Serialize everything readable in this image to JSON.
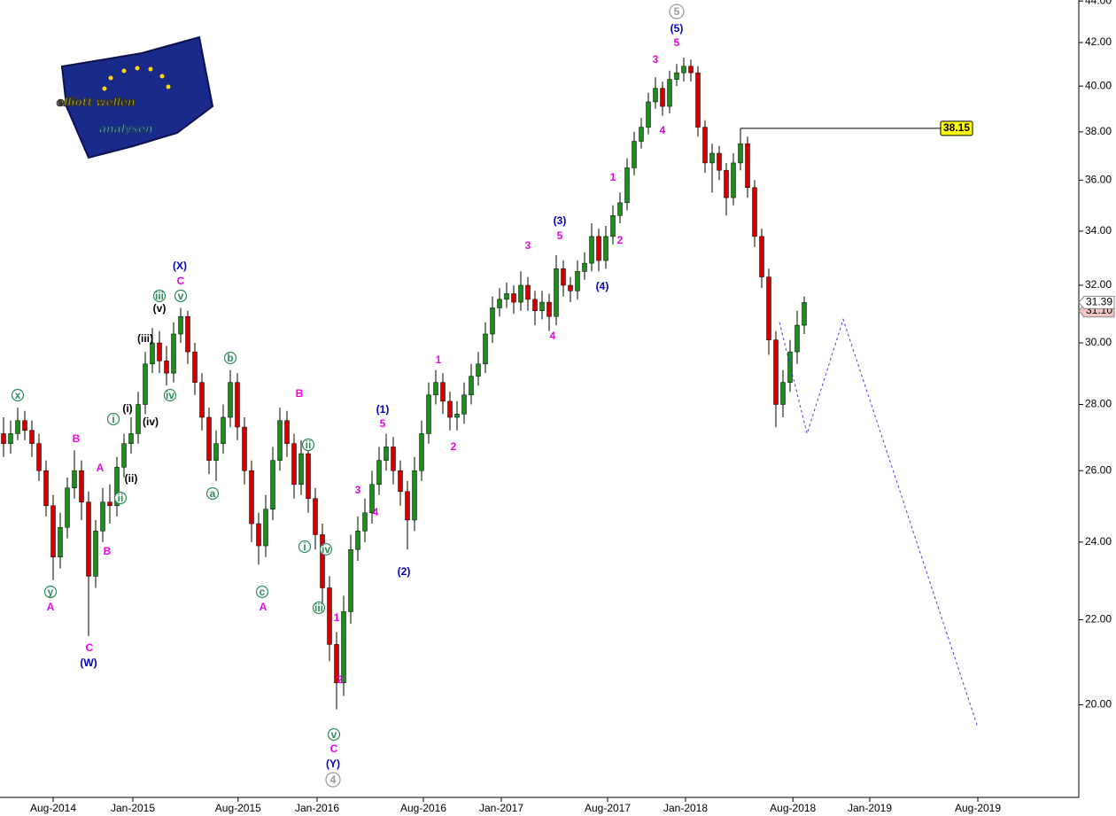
{
  "chart_data": {
    "type": "candlestick",
    "logo": {
      "line1": "elliott wellen",
      "line2": "analysen"
    },
    "open": [
      27.1,
      26.8,
      27.1,
      27.5,
      27.2,
      26.8,
      26.0,
      25.0,
      23.6,
      24.4,
      25.5,
      26.0,
      25.1,
      23.1,
      24.3,
      25.1,
      25.0,
      26.1,
      26.8,
      27.1,
      28.0,
      29.3,
      30.0,
      29.4,
      29.0,
      30.3,
      30.9,
      29.7,
      28.7,
      27.6,
      26.3,
      26.8,
      27.6,
      28.7,
      27.3,
      26.0,
      24.5,
      23.9,
      24.9,
      26.3,
      27.5,
      26.8,
      25.6,
      26.5,
      25.2,
      24.2,
      22.8,
      21.4,
      20.5,
      22.2,
      23.8,
      24.3,
      24.8,
      25.6,
      26.3,
      26.7,
      26.0,
      25.4,
      24.6,
      26.0,
      27.1,
      28.3,
      28.7,
      28.1,
      27.6,
      27.7,
      28.3,
      28.9,
      29.3,
      30.3,
      31.2,
      31.5,
      31.7,
      31.4,
      32.0,
      31.5,
      31.1,
      31.4,
      30.9,
      32.6,
      32.0,
      31.8,
      32.5,
      32.8,
      33.8,
      32.9,
      33.8,
      34.6,
      35.1,
      36.5,
      37.6,
      38.2,
      39.3,
      39.9,
      39.1,
      40.3,
      40.6,
      40.9,
      40.6,
      38.2,
      36.7,
      37.1,
      36.4,
      35.3,
      36.7,
      37.5,
      35.7,
      33.8,
      32.3,
      30.1,
      28.0,
      28.7,
      29.7,
      30.6
    ],
    "high": [
      27.6,
      27.5,
      27.9,
      27.8,
      27.5,
      27.1,
      26.3,
      25.3,
      24.8,
      25.8,
      26.6,
      26.3,
      25.4,
      24.6,
      25.5,
      25.6,
      26.4,
      27.1,
      27.6,
      28.4,
      29.7,
      30.5,
      30.4,
      29.9,
      30.7,
      31.2,
      31.1,
      30.0,
      29.0,
      27.9,
      27.2,
      28.0,
      29.1,
      29.0,
      27.6,
      26.3,
      24.8,
      25.3,
      26.7,
      27.9,
      27.8,
      27.1,
      26.9,
      26.8,
      25.5,
      24.5,
      23.1,
      21.7,
      22.6,
      24.2,
      24.7,
      25.2,
      26.0,
      26.7,
      27.1,
      27.0,
      26.3,
      25.7,
      26.4,
      27.5,
      28.7,
      29.1,
      29.0,
      28.4,
      28.1,
      28.7,
      29.3,
      29.7,
      30.7,
      31.6,
      31.9,
      32.1,
      32.0,
      32.5,
      32.3,
      31.8,
      31.8,
      31.7,
      33.1,
      32.9,
      32.3,
      32.9,
      33.2,
      34.3,
      34.1,
      34.2,
      35.0,
      35.5,
      36.9,
      38.0,
      38.6,
      39.7,
      40.4,
      40.2,
      40.7,
      41.0,
      41.3,
      41.2,
      40.9,
      38.5,
      37.5,
      37.4,
      36.7,
      37.1,
      38.15,
      37.8,
      36.0,
      34.1,
      32.6,
      30.4,
      29.1,
      30.1,
      31.1,
      31.6
    ],
    "low": [
      26.4,
      26.5,
      26.9,
      26.9,
      26.4,
      25.7,
      24.7,
      23.0,
      23.3,
      24.1,
      25.2,
      24.6,
      21.6,
      22.8,
      24.0,
      24.5,
      24.7,
      25.8,
      26.5,
      26.8,
      27.7,
      29.0,
      29.0,
      28.6,
      28.7,
      30.0,
      29.3,
      28.3,
      27.2,
      25.9,
      25.7,
      26.5,
      27.3,
      26.9,
      25.6,
      24.0,
      23.4,
      23.6,
      24.6,
      26.0,
      26.4,
      25.2,
      25.3,
      24.8,
      23.8,
      22.4,
      21.0,
      19.9,
      20.2,
      21.9,
      23.5,
      24.0,
      24.5,
      25.3,
      26.0,
      25.6,
      25.0,
      23.8,
      24.3,
      25.7,
      26.8,
      28.0,
      27.7,
      27.2,
      27.2,
      27.4,
      28.0,
      28.6,
      29.0,
      30.0,
      30.9,
      31.2,
      31.0,
      31.1,
      31.1,
      30.6,
      30.8,
      30.4,
      30.6,
      31.6,
      31.4,
      31.5,
      32.2,
      32.5,
      32.5,
      32.6,
      33.5,
      34.3,
      34.8,
      36.2,
      37.3,
      37.9,
      39.0,
      38.7,
      38.8,
      40.0,
      40.2,
      40.2,
      37.8,
      36.3,
      35.5,
      36.0,
      34.6,
      35.0,
      36.4,
      35.3,
      33.4,
      31.9,
      29.6,
      27.3,
      27.6,
      28.4,
      29.3,
      30.3
    ],
    "close": [
      26.8,
      27.1,
      27.5,
      27.2,
      26.8,
      26.0,
      25.0,
      23.6,
      24.4,
      25.5,
      26.0,
      25.1,
      23.1,
      24.3,
      25.1,
      25.0,
      26.1,
      26.8,
      27.1,
      28.0,
      29.3,
      30.0,
      29.4,
      29.0,
      30.3,
      30.9,
      29.7,
      28.7,
      27.6,
      26.3,
      26.8,
      27.6,
      28.7,
      27.3,
      26.0,
      24.5,
      23.9,
      24.9,
      26.3,
      27.5,
      26.8,
      25.6,
      26.5,
      25.2,
      24.2,
      22.8,
      21.4,
      20.5,
      22.2,
      23.8,
      24.3,
      24.8,
      25.6,
      26.3,
      26.7,
      26.0,
      25.4,
      24.6,
      26.0,
      27.1,
      28.3,
      28.7,
      28.1,
      27.6,
      27.7,
      28.3,
      28.9,
      29.3,
      30.3,
      31.2,
      31.5,
      31.7,
      31.4,
      32.0,
      31.5,
      31.1,
      31.4,
      30.9,
      32.6,
      32.0,
      31.8,
      32.5,
      32.8,
      33.8,
      32.9,
      33.8,
      34.6,
      35.1,
      36.5,
      37.6,
      38.2,
      39.3,
      39.9,
      39.1,
      40.3,
      40.6,
      40.9,
      40.6,
      38.2,
      36.7,
      37.1,
      36.4,
      35.3,
      36.7,
      37.5,
      35.7,
      33.8,
      32.3,
      30.1,
      28.0,
      28.7,
      29.7,
      30.6,
      31.39
    ],
    "up_color": "#1e8c1e",
    "down_color": "#d00000",
    "log_scale": true,
    "xlim": [
      -0.5,
      151.5
    ],
    "xticks": [
      {
        "value": 7,
        "label": "Aug-2014"
      },
      {
        "value": 18.25,
        "label": "Jan-2015"
      },
      {
        "value": 33.1,
        "label": "Aug-2015"
      },
      {
        "value": 44.25,
        "label": "Jan-2016"
      },
      {
        "value": 59.25,
        "label": "Aug-2016"
      },
      {
        "value": 70.25,
        "label": "Jan-2017"
      },
      {
        "value": 85.25,
        "label": "Aug-2017"
      },
      {
        "value": 96.25,
        "label": "Jan-2018"
      },
      {
        "value": 111.4,
        "label": "Aug-2018"
      },
      {
        "value": 122.25,
        "label": "Jan-2019"
      },
      {
        "value": 137.5,
        "label": "Aug-2019"
      }
    ],
    "ylim": [
      18.03,
      44.05
    ],
    "yticks": [
      {
        "value": 20,
        "label": "20.00"
      },
      {
        "value": 22,
        "label": "22.00"
      },
      {
        "value": 24,
        "label": "24.00"
      },
      {
        "value": 26,
        "label": "26.00"
      },
      {
        "value": 28,
        "label": "28.00"
      },
      {
        "value": 30,
        "label": "30.00"
      },
      {
        "value": 32,
        "label": "32.00"
      },
      {
        "value": 34,
        "label": "34.00"
      },
      {
        "value": 36,
        "label": "36.00"
      },
      {
        "value": 38,
        "label": "38.00"
      },
      {
        "value": 40,
        "label": "40.00"
      },
      {
        "value": 42,
        "label": "42.00"
      },
      {
        "value": 44,
        "label": "44.00"
      }
    ],
    "resistance": 38.15,
    "marker": {
      "value": 31.1,
      "label": "31.10",
      "color": "#f2c4c4"
    },
    "projection": {
      "x": [
        109.5,
        113.4,
        118.5,
        137.5
      ],
      "values": [
        30.7,
        27.1,
        30.8,
        19.5
      ],
      "color": "#4040e0"
    },
    "annotations": [
      {
        "text": "(X)",
        "color": "#0000cc"
      },
      {
        "text": "(W)",
        "color": "#0000cc"
      },
      {
        "text": "(1)",
        "color": "#0000cc"
      },
      {
        "text": "(2)",
        "color": "#0000cc"
      },
      {
        "text": "(3)",
        "color": "#0000cc"
      },
      {
        "text": "(4)",
        "color": "#0000cc"
      },
      {
        "text": "(5)",
        "color": "#0000cc"
      },
      {
        "text": "(Y)",
        "color": "#0000cc"
      },
      {
        "text": "C",
        "color": "#ee00ee"
      },
      {
        "text": "B",
        "color": "#ee00ee"
      },
      {
        "text": "A",
        "color": "#ee00ee"
      },
      {
        "text": "B",
        "color": "#ee00ee"
      },
      {
        "text": "A",
        "color": "#ee00ee"
      },
      {
        "text": "C",
        "color": "#ee00ee"
      },
      {
        "text": "B",
        "color": "#ee00ee"
      },
      {
        "text": "A",
        "color": "#ee00ee"
      },
      {
        "text": "5",
        "color": "#ee00ee"
      },
      {
        "text": "3",
        "color": "#ee00ee"
      },
      {
        "text": "4",
        "color": "#ee00ee"
      },
      {
        "text": "1",
        "color": "#ee00ee"
      },
      {
        "text": "2",
        "color": "#ee00ee"
      },
      {
        "text": "C",
        "color": "#ee00ee"
      },
      {
        "text": "1",
        "color": "#ee00ee"
      },
      {
        "text": "2",
        "color": "#ee00ee"
      },
      {
        "text": "3",
        "color": "#ee00ee"
      },
      {
        "text": "5",
        "color": "#ee00ee"
      },
      {
        "text": "4",
        "color": "#ee00ee"
      },
      {
        "text": "1",
        "color": "#ee00ee"
      },
      {
        "text": "2",
        "color": "#ee00ee"
      },
      {
        "text": "3",
        "color": "#ee00ee"
      },
      {
        "text": "5",
        "color": "#ee00ee"
      },
      {
        "text": "4",
        "color": "#ee00ee"
      },
      {
        "text": "x",
        "color": "#2e8b57",
        "circled": true
      },
      {
        "text": "y",
        "color": "#2e8b57",
        "circled": true
      },
      {
        "text": "i",
        "color": "#2e8b57",
        "circled": true
      },
      {
        "text": "ii",
        "color": "#2e8b57",
        "circled": true
      },
      {
        "text": "iii",
        "color": "#2e8b57",
        "circled": true
      },
      {
        "text": "v",
        "color": "#2e8b57",
        "circled": true
      },
      {
        "text": "iv",
        "color": "#2e8b57",
        "circled": true
      },
      {
        "text": "b",
        "color": "#2e8b57",
        "circled": true
      },
      {
        "text": "a",
        "color": "#2e8b57",
        "circled": true
      },
      {
        "text": "c",
        "color": "#2e8b57",
        "circled": true
      },
      {
        "text": "ii",
        "color": "#2e8b57",
        "circled": true
      },
      {
        "text": "i",
        "color": "#2e8b57",
        "circled": true
      },
      {
        "text": "iv",
        "color": "#2e8b57",
        "circled": true
      },
      {
        "text": "iii",
        "color": "#2e8b57",
        "circled": true
      },
      {
        "text": "v",
        "color": "#2e8b57",
        "circled": true
      },
      {
        "text": "(v)",
        "color": "#000000"
      },
      {
        "text": "(iii)",
        "color": "#000000"
      },
      {
        "text": "(i)",
        "color": "#000000"
      },
      {
        "text": "(iv)",
        "color": "#000000"
      },
      {
        "text": "(ii)",
        "color": "#000000"
      },
      {
        "text": "5",
        "color": "#999999",
        "circled": true
      },
      {
        "text": "4",
        "color": "#999999",
        "circled": true
      }
    ]
  }
}
